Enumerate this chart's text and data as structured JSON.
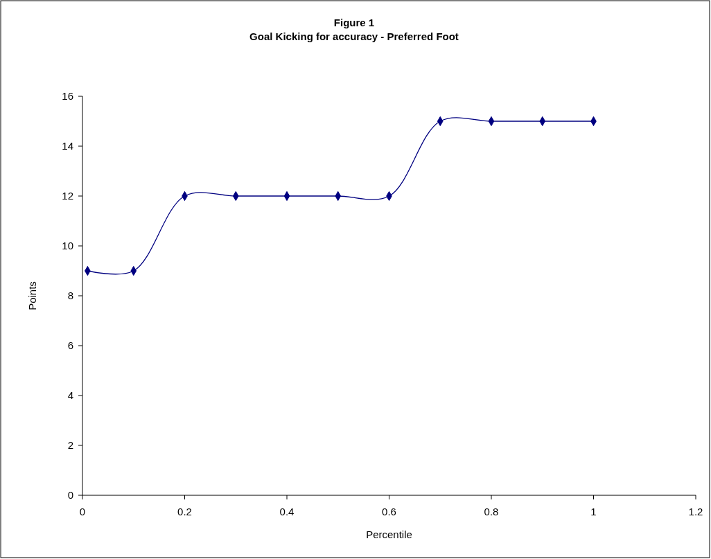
{
  "chart_data": {
    "type": "line",
    "title": "Figure 1\nGoal Kicking for accuracy - Preferred Foot",
    "xlabel": "Percentile",
    "ylabel": "Points",
    "x": [
      0.01,
      0.1,
      0.2,
      0.3,
      0.4,
      0.5,
      0.6,
      0.7,
      0.8,
      0.9,
      1
    ],
    "series": [
      {
        "color": "#000080",
        "values": [
          9,
          9,
          12,
          12,
          12,
          12,
          12,
          15,
          15,
          15,
          15
        ]
      }
    ],
    "xlim": [
      0,
      1.2
    ],
    "xticks": [
      0,
      0.2,
      0.4,
      0.6,
      0.8,
      1,
      1.2
    ],
    "ylim": [
      0,
      16
    ],
    "yticks": [
      0,
      2,
      4,
      6,
      8,
      10,
      12,
      14,
      16
    ],
    "grid": false,
    "marker": "diamond",
    "line_style": "solid"
  }
}
